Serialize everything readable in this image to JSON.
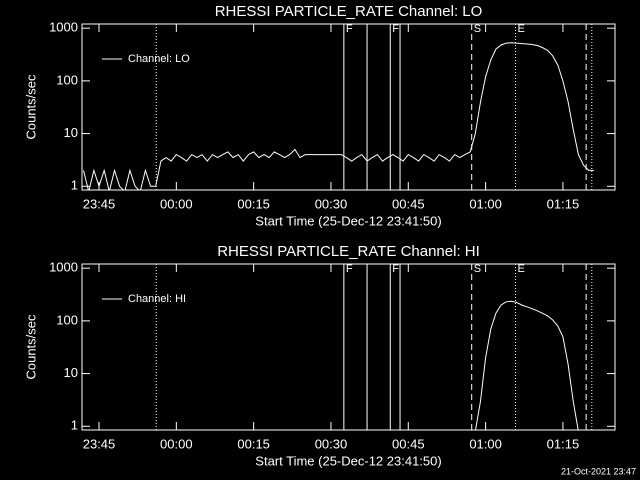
{
  "chart_data": [
    {
      "type": "line",
      "title": "RHESSI PARTICLE_RATE Channel: LO",
      "xlabel": "Start Time (25-Dec-12 23:41:50)",
      "ylabel": "Counts/sec",
      "log_y": true,
      "legend": "upper left",
      "xlim": [
        -18.3,
        85.1
      ],
      "ylim": [
        0.85,
        1200
      ],
      "xticks": [
        {
          "value": -15,
          "label": "23:45"
        },
        {
          "value": 0,
          "label": "00:00"
        },
        {
          "value": 15,
          "label": "00:15"
        },
        {
          "value": 30,
          "label": "00:30"
        },
        {
          "value": 45,
          "label": "00:45"
        },
        {
          "value": 60,
          "label": "01:00"
        },
        {
          "value": 75,
          "label": "01:15"
        }
      ],
      "yticks": [
        1,
        10,
        100,
        1000
      ],
      "markers": [
        {
          "x": -3.9,
          "style": "dotted"
        },
        {
          "x": 32.5,
          "style": "solid",
          "label": "F"
        },
        {
          "x": 37.0,
          "style": "solid"
        },
        {
          "x": 41.5,
          "style": "solid",
          "label": "F"
        },
        {
          "x": 43.4,
          "style": "solid"
        },
        {
          "x": 57.3,
          "style": "dashed",
          "label": "S"
        },
        {
          "x": 65.8,
          "style": "dotted",
          "label": "E"
        },
        {
          "x": 79.5,
          "style": "dashed"
        },
        {
          "x": 80.6,
          "style": "dotted"
        }
      ],
      "series": [
        {
          "name": "Channel: LO",
          "color": "#ffffff",
          "x": [
            -18,
            -17,
            -16,
            -15,
            -14,
            -13,
            -12,
            -11,
            -10,
            -9,
            -8,
            -7,
            -6,
            -5,
            -4,
            -3,
            -2,
            -1,
            0,
            1,
            2,
            3,
            4,
            5,
            6,
            7,
            8,
            9,
            10,
            11,
            12,
            13,
            14,
            15,
            16,
            17,
            18,
            19,
            20,
            21,
            22,
            23,
            24,
            25,
            26,
            27,
            28,
            29,
            30,
            31,
            32,
            33,
            34,
            35,
            36,
            37,
            38,
            39,
            40,
            41,
            42,
            43,
            44,
            45,
            46,
            47,
            48,
            49,
            50,
            51,
            52,
            53,
            54,
            55,
            56,
            57,
            58,
            59,
            60,
            61,
            62,
            63,
            64,
            65,
            66,
            67,
            68,
            69,
            70,
            71,
            72,
            73,
            74,
            75,
            76,
            77,
            78,
            79,
            80,
            81
          ],
          "values": [
            2,
            0.8,
            2,
            1,
            2,
            0.8,
            2,
            1,
            0.8,
            2,
            1,
            0.8,
            2,
            1,
            1,
            3,
            3.5,
            3,
            4,
            3.5,
            3,
            4,
            3.5,
            4,
            3,
            4,
            3.5,
            4,
            4.5,
            3.5,
            4,
            3,
            4,
            4.5,
            3.5,
            4,
            3.5,
            4.5,
            4,
            3.5,
            4,
            5,
            3.5,
            4,
            4,
            4,
            4,
            4,
            4,
            4,
            4,
            3.5,
            3,
            3.5,
            4,
            3,
            3.5,
            4,
            3,
            3.5,
            4,
            3.5,
            3,
            4,
            3.5,
            3,
            4,
            3.5,
            3,
            4,
            3.5,
            3,
            4,
            3.5,
            4,
            4.5,
            10,
            40,
            120,
            250,
            400,
            480,
            520,
            530,
            520,
            510,
            500,
            490,
            470,
            430,
            380,
            300,
            200,
            100,
            40,
            12,
            4,
            2.5,
            2,
            2
          ]
        }
      ]
    },
    {
      "type": "line",
      "title": "RHESSI PARTICLE_RATE Channel: HI",
      "xlabel": "Start Time (25-Dec-12 23:41:50)",
      "ylabel": "Counts/sec",
      "log_y": true,
      "legend": "upper left",
      "xlim": [
        -18.3,
        85.1
      ],
      "ylim": [
        0.85,
        1200
      ],
      "xticks": [
        {
          "value": -15,
          "label": "23:45"
        },
        {
          "value": 0,
          "label": "00:00"
        },
        {
          "value": 15,
          "label": "00:15"
        },
        {
          "value": 30,
          "label": "00:30"
        },
        {
          "value": 45,
          "label": "00:45"
        },
        {
          "value": 60,
          "label": "01:00"
        },
        {
          "value": 75,
          "label": "01:15"
        }
      ],
      "yticks": [
        1,
        10,
        100,
        1000
      ],
      "markers": [
        {
          "x": -3.9,
          "style": "dotted"
        },
        {
          "x": 32.5,
          "style": "solid",
          "label": "F"
        },
        {
          "x": 37.0,
          "style": "solid"
        },
        {
          "x": 41.5,
          "style": "solid",
          "label": "F"
        },
        {
          "x": 43.4,
          "style": "solid"
        },
        {
          "x": 57.3,
          "style": "dashed",
          "label": "S"
        },
        {
          "x": 65.8,
          "style": "dotted",
          "label": "E"
        },
        {
          "x": 79.5,
          "style": "dashed"
        },
        {
          "x": 80.6,
          "style": "dotted"
        }
      ],
      "series": [
        {
          "name": "Channel: HI",
          "color": "#ffffff",
          "x": [
            58,
            59,
            60,
            61,
            62,
            63,
            64,
            65,
            66,
            67,
            68,
            69,
            70,
            71,
            72,
            73,
            74,
            75,
            76,
            77,
            78
          ],
          "values": [
            0.8,
            3,
            20,
            70,
            140,
            200,
            230,
            235,
            225,
            200,
            185,
            170,
            155,
            140,
            125,
            105,
            80,
            50,
            15,
            3,
            0.8
          ]
        }
      ]
    }
  ],
  "footer": "21-Oct-2021 23:47"
}
